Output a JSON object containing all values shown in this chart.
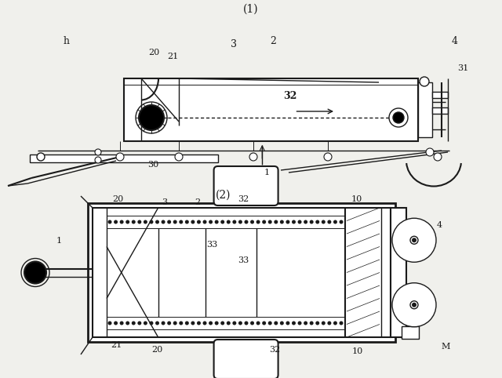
{
  "bg_color": "#f0f0ec",
  "line_color": "#1a1a1a",
  "fig_width": 6.4,
  "fig_height": 4.82,
  "title1": "(1)",
  "title2": "(2)"
}
